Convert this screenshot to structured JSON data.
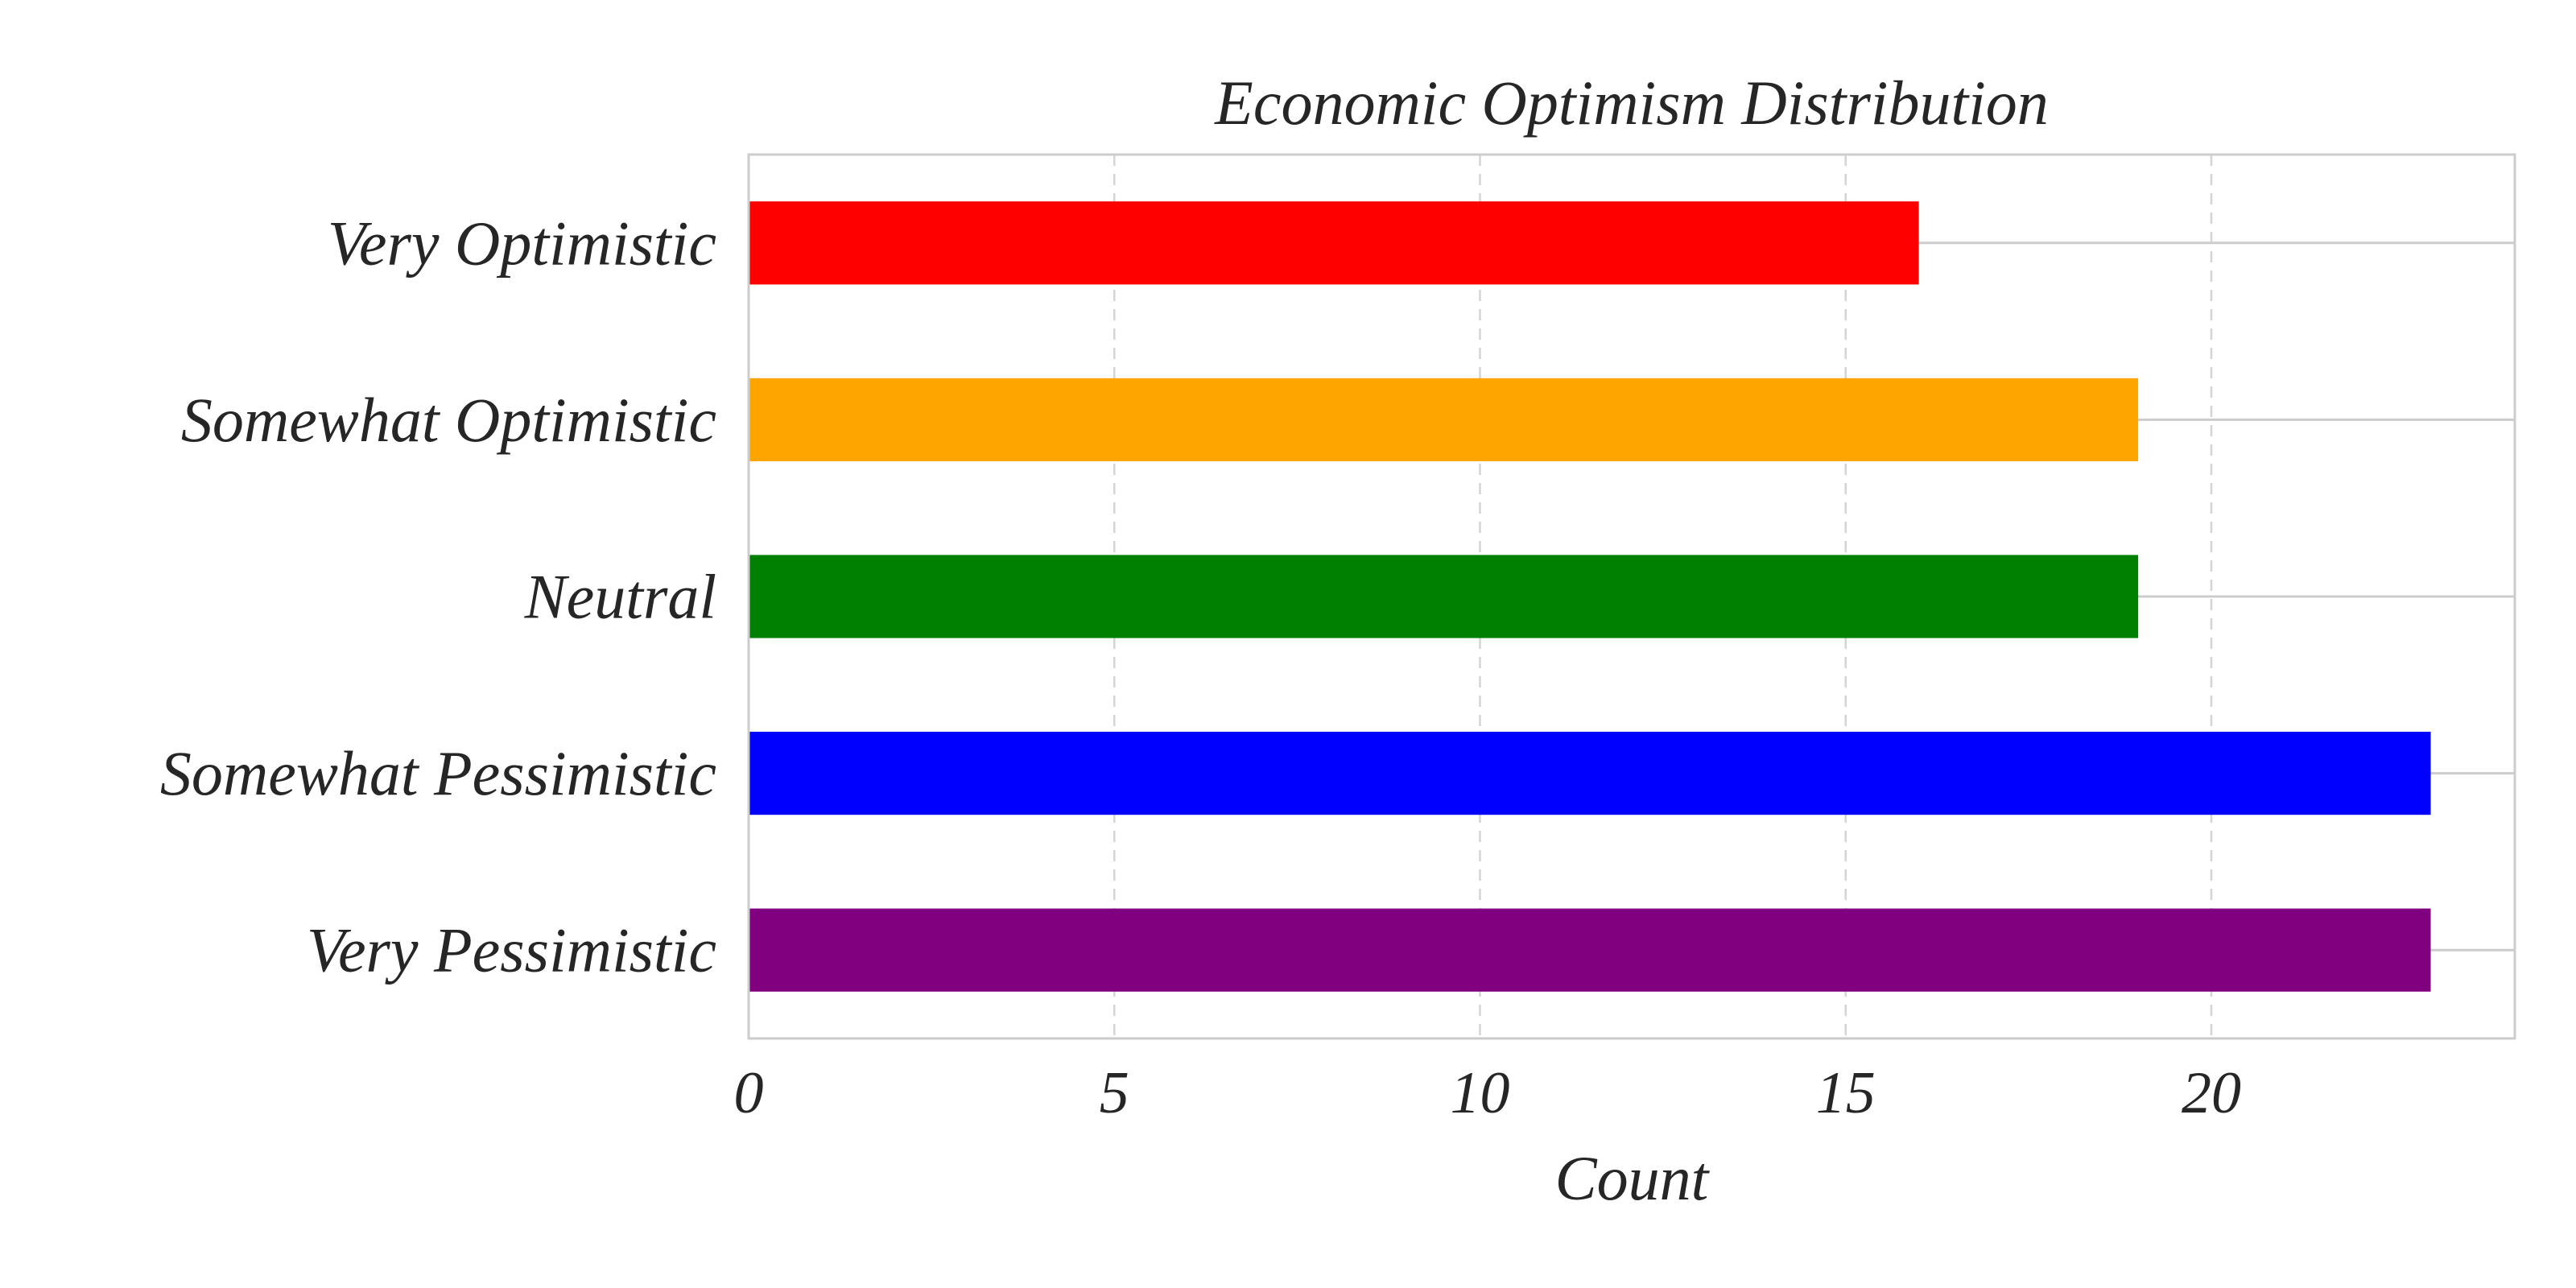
{
  "chart_data": {
    "type": "bar",
    "orientation": "horizontal",
    "title": "Economic Optimism Distribution",
    "xlabel": "Count",
    "ylabel": "",
    "categories": [
      "Very Pessimistic",
      "Somewhat Pessimistic",
      "Neutral",
      "Somewhat Optimistic",
      "Very Optimistic"
    ],
    "values": [
      23,
      23,
      19,
      19,
      16
    ],
    "colors": [
      "#800080",
      "#0000ff",
      "#008000",
      "#ffa500",
      "#ff0000"
    ],
    "xlim": [
      0,
      24.15
    ],
    "xticks": [
      0,
      5,
      10,
      15,
      20
    ],
    "xtick_labels": [
      "0",
      "5",
      "10",
      "15",
      "20"
    ],
    "grid": {
      "x": "dashed",
      "y": "solid"
    }
  }
}
